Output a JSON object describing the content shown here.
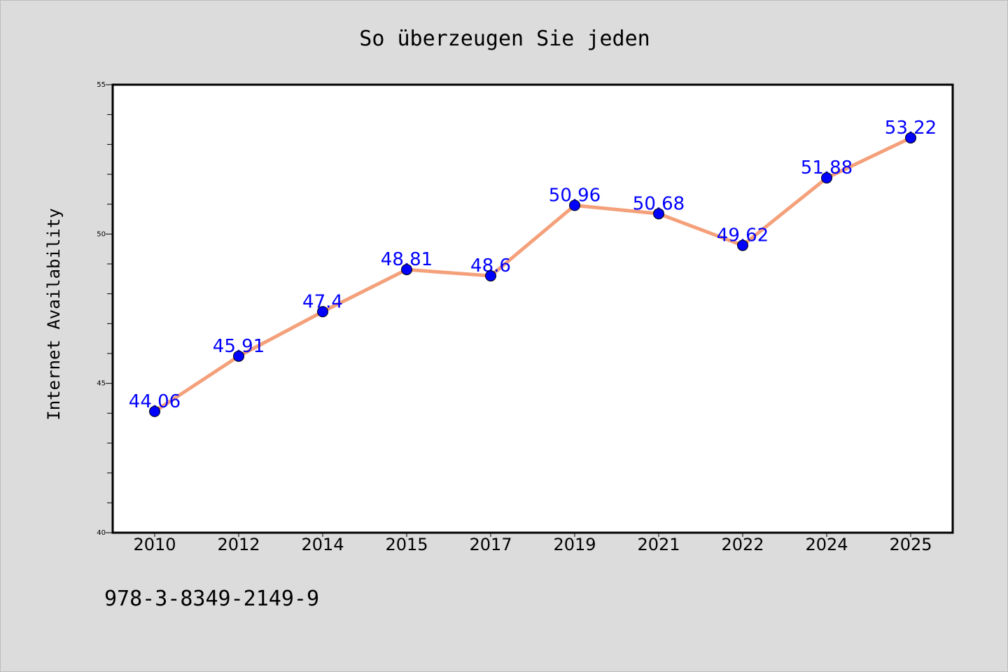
{
  "chart_data": {
    "type": "line",
    "title": "So überzeugen Sie jeden",
    "ylabel": "Internet Availability",
    "xlabel": "",
    "categories": [
      "2010",
      "2012",
      "2014",
      "2015",
      "2017",
      "2019",
      "2021",
      "2022",
      "2024",
      "2025"
    ],
    "series": [
      {
        "values": [
          44.06,
          45.91,
          47.4,
          48.81,
          48.6,
          50.96,
          50.68,
          49.62,
          51.88,
          53.22
        ],
        "value_labels": [
          "44.06",
          "45.91",
          "47.4",
          "48.81",
          "48.6",
          "50.96",
          "50.68",
          "49.62",
          "51.88",
          "53.22"
        ]
      }
    ],
    "ylim": [
      40,
      55
    ],
    "yticks": [
      "40",
      "45",
      "50",
      "55"
    ],
    "grid": false,
    "legend": "none",
    "colors": {
      "line": "#f4a07a",
      "marker": "#0000ff",
      "labels": "#0000ff",
      "background": "#dcdcdc",
      "plot_area": "#ffffff"
    }
  },
  "footer": {
    "isbn": "978-3-8349-2149-9"
  }
}
